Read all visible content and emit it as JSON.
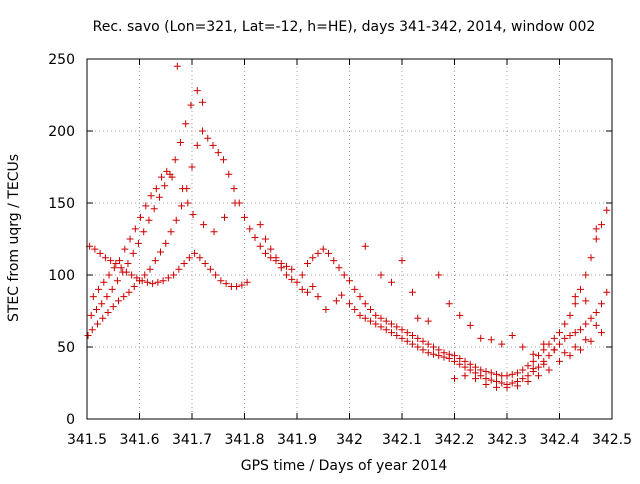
{
  "chart_data": {
    "type": "scatter",
    "title": "Rec. savo (Lon=321, Lat=-12, h=HE), days 341-342, 2014, window 002",
    "xlabel": "GPS time / Days of year 2014",
    "ylabel": "STEC from uqrg / TECUs",
    "xlim": [
      341.5,
      342.5
    ],
    "ylim": [
      0,
      250
    ],
    "xticks": [
      341.5,
      341.6,
      341.7,
      341.8,
      341.9,
      342.0,
      342.1,
      342.2,
      342.3,
      342.4,
      342.5
    ],
    "xtick_labels": [
      "341.5",
      "341.6",
      "341.7",
      "341.8",
      "341.9",
      "342",
      "342.1",
      "342.2",
      "342.3",
      "342.4",
      "342.5"
    ],
    "yticks": [
      0,
      50,
      100,
      150,
      200,
      250
    ],
    "ytick_labels": [
      "0",
      "50",
      "100",
      "150",
      "200",
      "250"
    ],
    "grid": true,
    "marker": "+",
    "color": "#cc0000",
    "series": [
      {
        "values": [
          [
            341.502,
            58
          ],
          [
            341.51,
            62
          ],
          [
            341.52,
            66
          ],
          [
            341.53,
            70
          ],
          [
            341.54,
            74
          ],
          [
            341.55,
            78
          ],
          [
            341.56,
            82
          ],
          [
            341.57,
            85
          ],
          [
            341.58,
            88
          ],
          [
            341.59,
            92
          ],
          [
            341.6,
            96
          ],
          [
            341.61,
            100
          ],
          [
            341.62,
            104
          ],
          [
            341.63,
            110
          ],
          [
            341.64,
            116
          ],
          [
            341.65,
            122
          ],
          [
            341.66,
            130
          ],
          [
            341.67,
            138
          ],
          [
            341.68,
            148
          ],
          [
            341.69,
            160
          ],
          [
            341.7,
            175
          ],
          [
            341.71,
            190
          ],
          [
            341.72,
            200
          ],
          [
            341.73,
            195
          ],
          [
            341.74,
            190
          ],
          [
            341.75,
            185
          ],
          [
            341.76,
            180
          ],
          [
            341.77,
            170
          ],
          [
            341.78,
            160
          ],
          [
            341.79,
            150
          ],
          [
            341.8,
            140
          ],
          [
            341.81,
            132
          ],
          [
            341.82,
            126
          ],
          [
            341.83,
            120
          ],
          [
            341.84,
            115
          ],
          [
            341.85,
            112
          ],
          [
            341.86,
            110
          ],
          [
            341.87,
            108
          ],
          [
            341.88,
            106
          ],
          [
            341.89,
            104
          ],
          [
            341.505,
            120
          ],
          [
            341.515,
            118
          ],
          [
            341.525,
            115
          ],
          [
            341.535,
            112
          ],
          [
            341.545,
            110
          ],
          [
            341.555,
            108
          ],
          [
            341.565,
            105
          ],
          [
            341.575,
            102
          ],
          [
            341.585,
            100
          ],
          [
            341.595,
            98
          ],
          [
            341.605,
            96
          ],
          [
            341.615,
            95
          ],
          [
            341.625,
            94
          ],
          [
            341.635,
            95
          ],
          [
            341.645,
            96
          ],
          [
            341.655,
            98
          ],
          [
            341.665,
            100
          ],
          [
            341.675,
            104
          ],
          [
            341.685,
            108
          ],
          [
            341.695,
            112
          ],
          [
            341.705,
            115
          ],
          [
            341.715,
            112
          ],
          [
            341.725,
            108
          ],
          [
            341.735,
            104
          ],
          [
            341.745,
            100
          ],
          [
            341.755,
            96
          ],
          [
            341.765,
            94
          ],
          [
            341.775,
            92
          ],
          [
            341.785,
            92
          ],
          [
            341.795,
            93
          ],
          [
            341.805,
            95
          ],
          [
            341.508,
            72
          ],
          [
            341.518,
            76
          ],
          [
            341.528,
            80
          ],
          [
            341.538,
            85
          ],
          [
            341.548,
            90
          ],
          [
            341.558,
            96
          ],
          [
            341.568,
            102
          ],
          [
            341.578,
            108
          ],
          [
            341.588,
            115
          ],
          [
            341.598,
            122
          ],
          [
            341.608,
            130
          ],
          [
            341.618,
            138
          ],
          [
            341.628,
            146
          ],
          [
            341.638,
            154
          ],
          [
            341.648,
            162
          ],
          [
            341.658,
            170
          ],
          [
            341.668,
            180
          ],
          [
            341.678,
            192
          ],
          [
            341.688,
            205
          ],
          [
            341.698,
            218
          ],
          [
            341.71,
            228
          ],
          [
            341.72,
            220
          ],
          [
            341.672,
            245
          ],
          [
            341.512,
            85
          ],
          [
            341.522,
            90
          ],
          [
            341.532,
            95
          ],
          [
            341.542,
            100
          ],
          [
            341.552,
            105
          ],
          [
            341.562,
            110
          ],
          [
            341.572,
            118
          ],
          [
            341.582,
            125
          ],
          [
            341.592,
            132
          ],
          [
            341.602,
            140
          ],
          [
            341.612,
            148
          ],
          [
            341.622,
            155
          ],
          [
            341.632,
            160
          ],
          [
            341.642,
            168
          ],
          [
            341.652,
            172
          ],
          [
            341.662,
            168
          ],
          [
            341.682,
            160
          ],
          [
            341.692,
            150
          ],
          [
            341.702,
            142
          ],
          [
            341.722,
            135
          ],
          [
            341.742,
            130
          ],
          [
            341.762,
            140
          ],
          [
            341.782,
            150
          ],
          [
            341.83,
            135
          ],
          [
            341.84,
            125
          ],
          [
            341.85,
            118
          ],
          [
            341.86,
            112
          ],
          [
            341.87,
            105
          ],
          [
            341.88,
            100
          ],
          [
            341.89,
            97
          ],
          [
            341.9,
            95
          ],
          [
            341.91,
            100
          ],
          [
            341.92,
            108
          ],
          [
            341.93,
            112
          ],
          [
            341.94,
            115
          ],
          [
            341.95,
            118
          ],
          [
            341.96,
            115
          ],
          [
            341.97,
            110
          ],
          [
            341.98,
            105
          ],
          [
            341.99,
            100
          ],
          [
            342.0,
            96
          ],
          [
            341.91,
            90
          ],
          [
            341.92,
            88
          ],
          [
            341.93,
            92
          ],
          [
            341.94,
            85
          ],
          [
            341.955,
            76
          ],
          [
            341.975,
            82
          ],
          [
            341.985,
            86
          ],
          [
            342.0,
            80
          ],
          [
            342.01,
            76
          ],
          [
            342.02,
            72
          ],
          [
            342.03,
            70
          ],
          [
            342.04,
            68
          ],
          [
            342.05,
            66
          ],
          [
            342.06,
            64
          ],
          [
            342.07,
            62
          ],
          [
            342.08,
            60
          ],
          [
            342.09,
            58
          ],
          [
            342.1,
            56
          ],
          [
            342.11,
            54
          ],
          [
            342.12,
            52
          ],
          [
            342.13,
            50
          ],
          [
            342.14,
            48
          ],
          [
            342.15,
            46
          ],
          [
            342.16,
            45
          ],
          [
            342.17,
            44
          ],
          [
            342.18,
            43
          ],
          [
            342.19,
            42
          ],
          [
            342.2,
            40
          ],
          [
            342.21,
            38
          ],
          [
            342.22,
            36
          ],
          [
            342.23,
            34
          ],
          [
            342.24,
            32
          ],
          [
            342.25,
            30
          ],
          [
            342.26,
            28
          ],
          [
            342.27,
            27
          ],
          [
            342.28,
            26
          ],
          [
            342.29,
            25
          ],
          [
            342.3,
            24
          ],
          [
            342.31,
            25
          ],
          [
            342.32,
            26
          ],
          [
            342.33,
            28
          ],
          [
            342.34,
            30
          ],
          [
            342.35,
            33
          ],
          [
            342.36,
            36
          ],
          [
            342.37,
            40
          ],
          [
            342.38,
            44
          ],
          [
            342.39,
            48
          ],
          [
            342.4,
            52
          ],
          [
            342.41,
            56
          ],
          [
            342.42,
            58
          ],
          [
            342.43,
            60
          ],
          [
            342.44,
            62
          ],
          [
            342.45,
            66
          ],
          [
            342.46,
            70
          ],
          [
            342.47,
            74
          ],
          [
            342.48,
            80
          ],
          [
            342.01,
            90
          ],
          [
            342.02,
            85
          ],
          [
            342.03,
            80
          ],
          [
            342.04,
            76
          ],
          [
            342.05,
            72
          ],
          [
            342.06,
            70
          ],
          [
            342.07,
            68
          ],
          [
            342.08,
            66
          ],
          [
            342.09,
            64
          ],
          [
            342.1,
            62
          ],
          [
            342.11,
            60
          ],
          [
            342.12,
            58
          ],
          [
            342.13,
            56
          ],
          [
            342.14,
            54
          ],
          [
            342.15,
            52
          ],
          [
            342.16,
            50
          ],
          [
            342.17,
            48
          ],
          [
            342.18,
            46
          ],
          [
            342.19,
            45
          ],
          [
            342.2,
            44
          ],
          [
            342.21,
            42
          ],
          [
            342.22,
            40
          ],
          [
            342.23,
            38
          ],
          [
            342.24,
            36
          ],
          [
            342.25,
            34
          ],
          [
            342.26,
            33
          ],
          [
            342.27,
            32
          ],
          [
            342.28,
            31
          ],
          [
            342.29,
            30
          ],
          [
            342.3,
            30
          ],
          [
            342.31,
            31
          ],
          [
            342.32,
            32
          ],
          [
            342.33,
            34
          ],
          [
            342.34,
            37
          ],
          [
            342.35,
            40
          ],
          [
            342.36,
            44
          ],
          [
            342.37,
            48
          ],
          [
            342.38,
            52
          ],
          [
            342.39,
            56
          ],
          [
            342.4,
            60
          ],
          [
            342.41,
            66
          ],
          [
            342.42,
            72
          ],
          [
            342.43,
            80
          ],
          [
            342.44,
            90
          ],
          [
            342.45,
            100
          ],
          [
            342.46,
            112
          ],
          [
            342.47,
            125
          ],
          [
            342.48,
            135
          ],
          [
            342.49,
            145
          ],
          [
            342.03,
            120
          ],
          [
            342.06,
            100
          ],
          [
            342.08,
            95
          ],
          [
            342.1,
            110
          ],
          [
            342.12,
            88
          ],
          [
            342.13,
            70
          ],
          [
            342.15,
            68
          ],
          [
            342.17,
            100
          ],
          [
            342.19,
            80
          ],
          [
            342.21,
            72
          ],
          [
            342.23,
            65
          ],
          [
            342.25,
            56
          ],
          [
            342.27,
            55
          ],
          [
            342.29,
            52
          ],
          [
            342.31,
            58
          ],
          [
            342.33,
            50
          ],
          [
            342.35,
            45
          ],
          [
            342.37,
            52
          ],
          [
            342.39,
            48
          ],
          [
            342.41,
            46
          ],
          [
            342.43,
            50
          ],
          [
            342.45,
            55
          ],
          [
            342.47,
            65
          ],
          [
            342.49,
            88
          ],
          [
            342.2,
            28
          ],
          [
            342.22,
            30
          ],
          [
            342.24,
            28
          ],
          [
            342.26,
            24
          ],
          [
            342.28,
            22
          ],
          [
            342.3,
            22
          ],
          [
            342.32,
            23
          ],
          [
            342.34,
            26
          ],
          [
            342.36,
            30
          ],
          [
            342.38,
            34
          ],
          [
            342.4,
            40
          ],
          [
            342.42,
            44
          ],
          [
            342.44,
            48
          ],
          [
            342.46,
            54
          ],
          [
            342.48,
            60
          ],
          [
            342.35,
            35
          ],
          [
            342.37,
            38
          ],
          [
            342.43,
            85
          ],
          [
            342.45,
            82
          ],
          [
            342.47,
            132
          ]
        ]
      }
    ]
  }
}
